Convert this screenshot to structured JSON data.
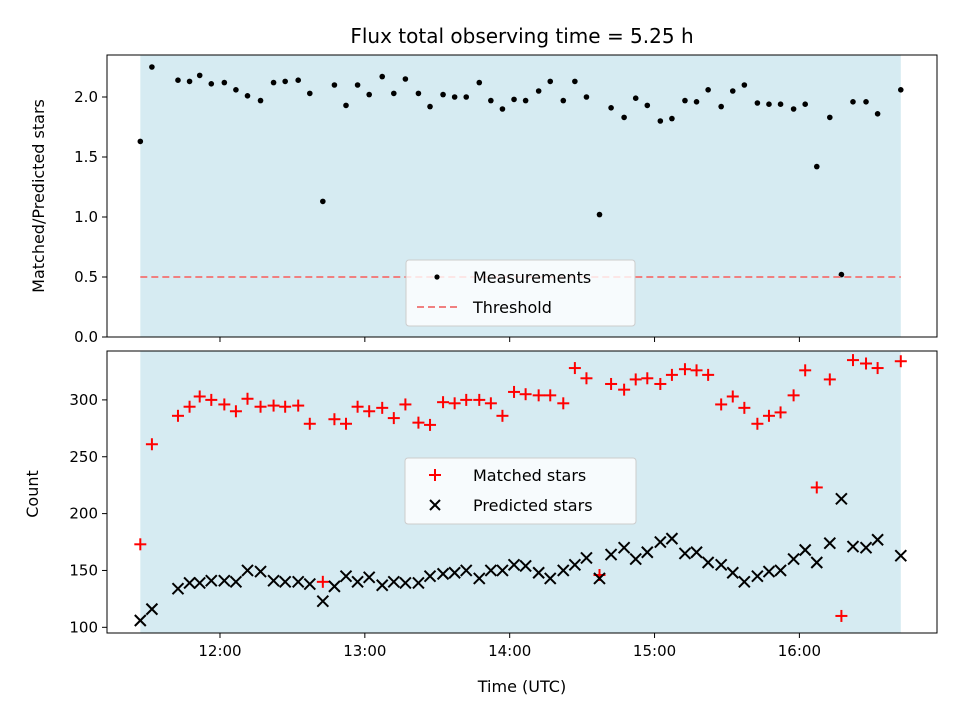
{
  "chart_data": {
    "type": "scatter",
    "title": "Flux total observing time = 5.25 h",
    "xlabel": "Time (UTC)",
    "x_ticks": [
      "12:00",
      "13:00",
      "14:00",
      "15:00",
      "16:00"
    ],
    "x_tick_values": [
      12.0,
      13.0,
      14.0,
      15.0,
      16.0
    ],
    "xlim": [
      11.22,
      16.95
    ],
    "shaded_span": {
      "x": [
        11.45,
        16.7
      ],
      "color": "#add8e6"
    },
    "panels": [
      {
        "id": "ratio",
        "ylabel": "Matched/Predicted stars",
        "ylim": [
          0.0,
          2.35
        ],
        "y_ticks": [
          0.0,
          0.5,
          1.0,
          1.5,
          2.0
        ],
        "y_tick_labels": [
          "0.0",
          "0.5",
          "1.0",
          "1.5",
          "2.0"
        ],
        "legend": {
          "placement": "lower-center"
        },
        "series": [
          {
            "name": "Measurements",
            "marker": "dot",
            "color": "#000000",
            "x": [
              11.45,
              11.53,
              11.71,
              11.79,
              11.86,
              11.94,
              12.03,
              12.11,
              12.19,
              12.28,
              12.37,
              12.45,
              12.54,
              12.62,
              12.71,
              12.79,
              12.87,
              12.95,
              13.03,
              13.12,
              13.2,
              13.28,
              13.37,
              13.45,
              13.54,
              13.62,
              13.7,
              13.79,
              13.87,
              13.95,
              14.03,
              14.11,
              14.2,
              14.28,
              14.37,
              14.45,
              14.53,
              14.62,
              14.7,
              14.79,
              14.87,
              14.95,
              15.04,
              15.12,
              15.21,
              15.29,
              15.37,
              15.46,
              15.54,
              15.62,
              15.71,
              15.79,
              15.87,
              15.96,
              16.04,
              16.12,
              16.21,
              16.29,
              16.37,
              16.46,
              16.54,
              16.7
            ],
            "y": [
              1.63,
              2.25,
              2.14,
              2.13,
              2.18,
              2.11,
              2.12,
              2.06,
              2.01,
              1.97,
              2.12,
              2.13,
              2.14,
              2.03,
              1.13,
              2.1,
              1.93,
              2.1,
              2.02,
              2.17,
              2.03,
              2.15,
              2.03,
              1.92,
              2.02,
              2.0,
              2.0,
              2.12,
              1.97,
              1.9,
              1.98,
              1.97,
              2.05,
              2.13,
              1.97,
              2.13,
              2.0,
              1.02,
              1.91,
              1.83,
              1.99,
              1.93,
              1.8,
              1.82,
              1.97,
              1.96,
              2.06,
              1.92,
              2.05,
              2.1,
              1.95,
              1.94,
              1.94,
              1.9,
              1.94,
              1.42,
              1.83,
              0.52,
              1.96,
              1.96,
              1.86,
              2.06
            ]
          },
          {
            "name": "Threshold",
            "marker": "dashed-line",
            "color": "#f08080",
            "x": [
              11.45,
              16.7
            ],
            "y": [
              0.5,
              0.5
            ]
          }
        ]
      },
      {
        "id": "counts",
        "ylabel": "Count",
        "ylim": [
          95,
          343
        ],
        "y_ticks": [
          100,
          150,
          200,
          250,
          300
        ],
        "y_tick_labels": [
          "100",
          "150",
          "200",
          "250",
          "300"
        ],
        "legend": {
          "placement": "center"
        },
        "series": [
          {
            "name": "Matched stars",
            "marker": "plus",
            "color": "#ff0000",
            "x": [
              11.45,
              11.53,
              11.71,
              11.79,
              11.86,
              11.94,
              12.03,
              12.11,
              12.19,
              12.28,
              12.37,
              12.45,
              12.54,
              12.62,
              12.71,
              12.79,
              12.87,
              12.95,
              13.03,
              13.12,
              13.2,
              13.28,
              13.37,
              13.45,
              13.54,
              13.62,
              13.7,
              13.79,
              13.87,
              13.95,
              14.03,
              14.11,
              14.2,
              14.28,
              14.37,
              14.45,
              14.53,
              14.62,
              14.7,
              14.79,
              14.87,
              14.95,
              15.04,
              15.12,
              15.21,
              15.29,
              15.37,
              15.46,
              15.54,
              15.62,
              15.71,
              15.79,
              15.87,
              15.96,
              16.04,
              16.12,
              16.21,
              16.29,
              16.37,
              16.46,
              16.54,
              16.7
            ],
            "y": [
              173,
              261,
              286,
              294,
              303,
              300,
              296,
              290,
              301,
              294,
              295,
              294,
              295,
              279,
              140,
              283,
              279,
              294,
              290,
              293,
              284,
              296,
              280,
              278,
              298,
              297,
              300,
              300,
              297,
              286,
              307,
              305,
              304,
              304,
              297,
              328,
              319,
              146,
              314,
              309,
              318,
              319,
              314,
              322,
              327,
              326,
              322,
              296,
              303,
              293,
              279,
              286,
              289,
              304,
              326,
              223,
              318,
              110,
              335,
              332,
              328,
              334
            ]
          },
          {
            "name": "Predicted stars",
            "marker": "x",
            "color": "#000000",
            "x": [
              11.45,
              11.53,
              11.71,
              11.79,
              11.86,
              11.94,
              12.03,
              12.11,
              12.19,
              12.28,
              12.37,
              12.45,
              12.54,
              12.62,
              12.71,
              12.79,
              12.87,
              12.95,
              13.03,
              13.12,
              13.2,
              13.28,
              13.37,
              13.45,
              13.54,
              13.62,
              13.7,
              13.79,
              13.87,
              13.95,
              14.03,
              14.11,
              14.2,
              14.28,
              14.37,
              14.45,
              14.53,
              14.62,
              14.7,
              14.79,
              14.87,
              14.95,
              15.04,
              15.12,
              15.21,
              15.29,
              15.37,
              15.46,
              15.54,
              15.62,
              15.71,
              15.79,
              15.87,
              15.96,
              16.04,
              16.12,
              16.21,
              16.29,
              16.37,
              16.46,
              16.54,
              16.7
            ],
            "y": [
              106,
              116,
              134,
              139,
              139,
              141,
              141,
              140,
              150,
              149,
              141,
              140,
              140,
              138,
              123,
              136,
              145,
              140,
              144,
              137,
              140,
              139,
              139,
              145,
              147,
              148,
              150,
              143,
              150,
              150,
              155,
              154,
              148,
              143,
              150,
              155,
              161,
              143,
              164,
              170,
              160,
              166,
              175,
              178,
              165,
              166,
              157,
              155,
              148,
              140,
              145,
              149,
              150,
              160,
              168,
              157,
              174,
              213,
              171,
              170,
              177,
              163
            ]
          }
        ]
      }
    ]
  }
}
